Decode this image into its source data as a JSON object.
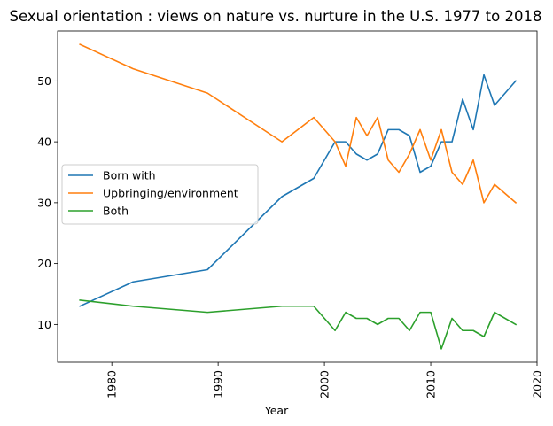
{
  "chart_data": {
    "type": "line",
    "title": "Sexual orientation : views on nature vs. nurture in the U.S. 1977 to 2018",
    "xlabel": "Year",
    "ylabel": "",
    "xlim": [
      1974.9,
      2020
    ],
    "ylim": [
      3.8,
      58.2
    ],
    "xticks": [
      1980,
      1990,
      2000,
      2010,
      2020
    ],
    "yticks": [
      10,
      20,
      30,
      40,
      50
    ],
    "grid": false,
    "legend": {
      "placement": "center-left"
    },
    "x": [
      1977,
      1982,
      1989,
      1996,
      1999,
      2001,
      2002,
      2003,
      2004,
      2005,
      2006,
      2007,
      2008,
      2009,
      2010,
      2011,
      2012,
      2013,
      2014,
      2015,
      2016,
      2018
    ],
    "series": [
      {
        "name": "Born with",
        "color": "#1f77b4",
        "values": [
          13,
          17,
          19,
          31,
          34,
          40,
          40,
          38,
          37,
          38,
          42,
          42,
          41,
          35,
          36,
          40,
          40,
          47,
          42,
          51,
          46,
          50
        ]
      },
      {
        "name": "Upbringing/environment",
        "color": "#ff7f0e",
        "values": [
          56,
          52,
          48,
          40,
          44,
          40,
          36,
          44,
          41,
          44,
          37,
          35,
          38,
          42,
          37,
          42,
          35,
          33,
          37,
          30,
          33,
          30
        ]
      },
      {
        "name": "Both",
        "color": "#2ca02c",
        "values": [
          14,
          13,
          12,
          13,
          13,
          9,
          12,
          11,
          11,
          10,
          11,
          11,
          9,
          12,
          12,
          6,
          11,
          9,
          9,
          8,
          12,
          10
        ]
      }
    ]
  }
}
